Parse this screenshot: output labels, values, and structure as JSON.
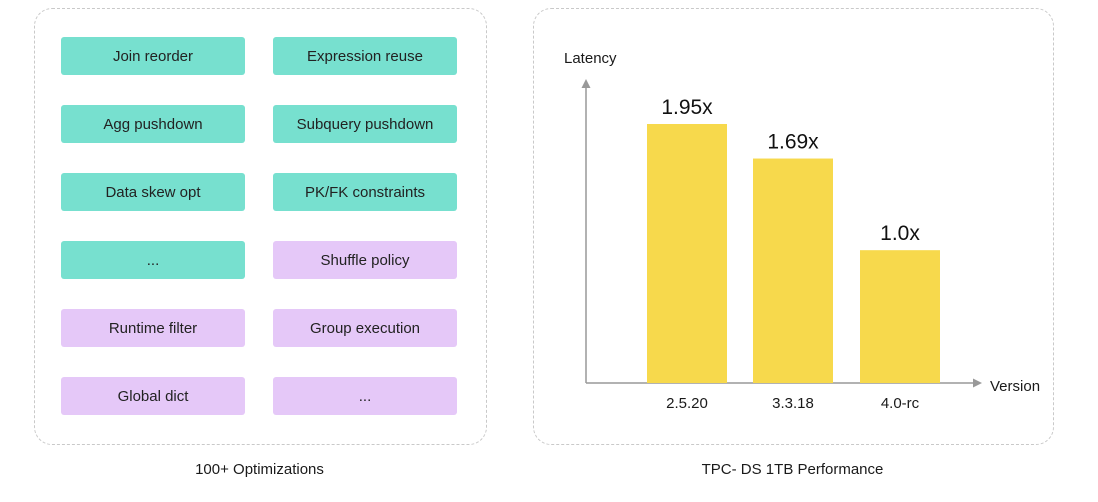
{
  "optimizations": {
    "caption": "100+  Optimizations",
    "items": [
      {
        "label": "Join reorder",
        "color": "#77e0cf"
      },
      {
        "label": "Expression reuse",
        "color": "#77e0cf"
      },
      {
        "label": "Agg pushdown",
        "color": "#77e0cf"
      },
      {
        "label": "Subquery pushdown",
        "color": "#77e0cf"
      },
      {
        "label": "Data skew opt",
        "color": "#77e0cf"
      },
      {
        "label": "PK/FK constraints",
        "color": "#77e0cf"
      },
      {
        "label": "...",
        "color": "#77e0cf"
      },
      {
        "label": "Shuffle policy",
        "color": "#e5c8f8"
      },
      {
        "label": "Runtime filter",
        "color": "#e5c8f8"
      },
      {
        "label": "Group execution",
        "color": "#e5c8f8"
      },
      {
        "label": "Global dict",
        "color": "#e5c8f8"
      },
      {
        "label": "...",
        "color": "#e5c8f8"
      }
    ]
  },
  "chart_data": {
    "type": "bar",
    "title": "TPC- DS 1TB Performance",
    "xlabel": "Version",
    "ylabel": "Latency",
    "categories": [
      "2.5.20",
      "3.3.18",
      "4.0-rc"
    ],
    "values": [
      1.95,
      1.69,
      1.0
    ],
    "data_labels": [
      "1.95x",
      "1.69x",
      "1.0x"
    ],
    "ylim": [
      0,
      2.5
    ],
    "grid": false,
    "bar_color": "#f7d94c",
    "axis_color": "#999999"
  }
}
